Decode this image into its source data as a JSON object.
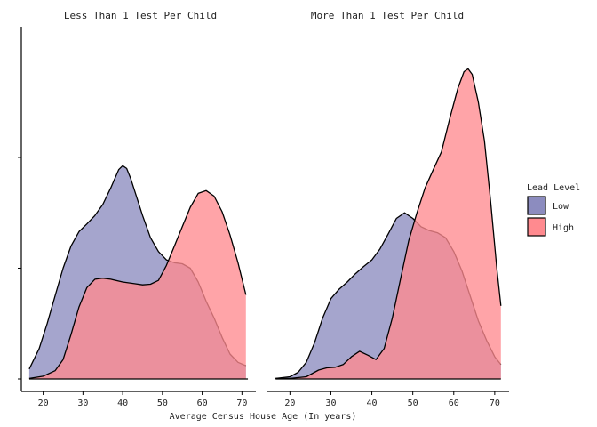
{
  "chart_data": {
    "type": "area",
    "xlabel": "Average Census House Age (In years)",
    "x_ticks": [
      20,
      30,
      40,
      50,
      60,
      70
    ],
    "xlim": [
      14.5,
      73.5
    ],
    "ylim": [
      0,
      0.062
    ],
    "y_ticks": [
      0,
      0.02,
      0.04
    ],
    "y_tick_labels_shown": false,
    "legend": {
      "title": "Lead Level",
      "position": "right",
      "entries": [
        {
          "label": "Low",
          "color": "#8c8cbf"
        },
        {
          "label": "High",
          "color": "#ff8a8f"
        }
      ]
    },
    "panels": [
      {
        "title": "Less Than 1 Test Per Child",
        "series": [
          {
            "name": "Low",
            "color": "#8c8cbf",
            "points": [
              [
                16.5,
                0.0018
              ],
              [
                19,
                0.0055
              ],
              [
                21,
                0.01
              ],
              [
                23,
                0.015
              ],
              [
                25,
                0.02
              ],
              [
                27,
                0.024
              ],
              [
                29,
                0.0266
              ],
              [
                31,
                0.028
              ],
              [
                33,
                0.0295
              ],
              [
                35,
                0.0315
              ],
              [
                37,
                0.0345
              ],
              [
                39,
                0.0378
              ],
              [
                40,
                0.0385
              ],
              [
                41,
                0.038
              ],
              [
                42,
                0.0362
              ],
              [
                43,
                0.034
              ],
              [
                45,
                0.0295
              ],
              [
                47,
                0.0255
              ],
              [
                49,
                0.023
              ],
              [
                51,
                0.0215
              ],
              [
                53,
                0.021
              ],
              [
                55,
                0.0208
              ],
              [
                57,
                0.02
              ],
              [
                59,
                0.0175
              ],
              [
                61,
                0.014
              ],
              [
                63,
                0.011
              ],
              [
                65,
                0.0075
              ],
              [
                67,
                0.0045
              ],
              [
                69,
                0.003
              ],
              [
                71,
                0.0024
              ]
            ]
          },
          {
            "name": "High",
            "color": "#ff8a8f",
            "points": [
              [
                16.5,
                0.0001
              ],
              [
                20,
                0.0005
              ],
              [
                23,
                0.0015
              ],
              [
                25,
                0.0035
              ],
              [
                27,
                0.008
              ],
              [
                29,
                0.013
              ],
              [
                31,
                0.0165
              ],
              [
                33,
                0.018
              ],
              [
                35,
                0.0182
              ],
              [
                37,
                0.018
              ],
              [
                40,
                0.0175
              ],
              [
                43,
                0.0172
              ],
              [
                45,
                0.017
              ],
              [
                47,
                0.0171
              ],
              [
                49,
                0.0178
              ],
              [
                51,
                0.0205
              ],
              [
                53,
                0.024
              ],
              [
                55,
                0.0275
              ],
              [
                57,
                0.031
              ],
              [
                59,
                0.0335
              ],
              [
                61,
                0.034
              ],
              [
                63,
                0.033
              ],
              [
                65,
                0.0302
              ],
              [
                67,
                0.026
              ],
              [
                69,
                0.021
              ],
              [
                71,
                0.0152
              ]
            ]
          }
        ]
      },
      {
        "title": "More Than 1 Test Per Child",
        "series": [
          {
            "name": "Low",
            "color": "#8c8cbf",
            "points": [
              [
                16.5,
                0.0001
              ],
              [
                20,
                0.0004
              ],
              [
                22,
                0.0012
              ],
              [
                24,
                0.003
              ],
              [
                26,
                0.0065
              ],
              [
                28,
                0.011
              ],
              [
                30,
                0.0145
              ],
              [
                32,
                0.0162
              ],
              [
                34,
                0.0175
              ],
              [
                36,
                0.019
              ],
              [
                38,
                0.0203
              ],
              [
                40,
                0.0215
              ],
              [
                42,
                0.0235
              ],
              [
                44,
                0.0262
              ],
              [
                46,
                0.029
              ],
              [
                48,
                0.03
              ],
              [
                50,
                0.029
              ],
              [
                52,
                0.0275
              ],
              [
                54,
                0.0268
              ],
              [
                56,
                0.0264
              ],
              [
                58,
                0.0255
              ],
              [
                60,
                0.023
              ],
              [
                62,
                0.0195
              ],
              [
                64,
                0.015
              ],
              [
                66,
                0.0105
              ],
              [
                68,
                0.007
              ],
              [
                70,
                0.004
              ],
              [
                71.5,
                0.0026
              ]
            ]
          },
          {
            "name": "High",
            "color": "#ff8a8f",
            "points": [
              [
                16.5,
                0.0001
              ],
              [
                20,
                0.0001
              ],
              [
                24,
                0.0004
              ],
              [
                27,
                0.0016
              ],
              [
                29,
                0.002
              ],
              [
                31,
                0.0021
              ],
              [
                33,
                0.0026
              ],
              [
                35,
                0.004
              ],
              [
                37,
                0.005
              ],
              [
                39,
                0.0043
              ],
              [
                41,
                0.0035
              ],
              [
                43,
                0.0055
              ],
              [
                45,
                0.011
              ],
              [
                47,
                0.018
              ],
              [
                49,
                0.025
              ],
              [
                51,
                0.03
              ],
              [
                53,
                0.0345
              ],
              [
                55,
                0.0378
              ],
              [
                57,
                0.041
              ],
              [
                59,
                0.047
              ],
              [
                61,
                0.0525
              ],
              [
                62.5,
                0.0555
              ],
              [
                63.5,
                0.056
              ],
              [
                64.5,
                0.055
              ],
              [
                66,
                0.05
              ],
              [
                67.5,
                0.043
              ],
              [
                69,
                0.032
              ],
              [
                70.5,
                0.02
              ],
              [
                71.5,
                0.0132
              ]
            ]
          }
        ]
      }
    ]
  }
}
